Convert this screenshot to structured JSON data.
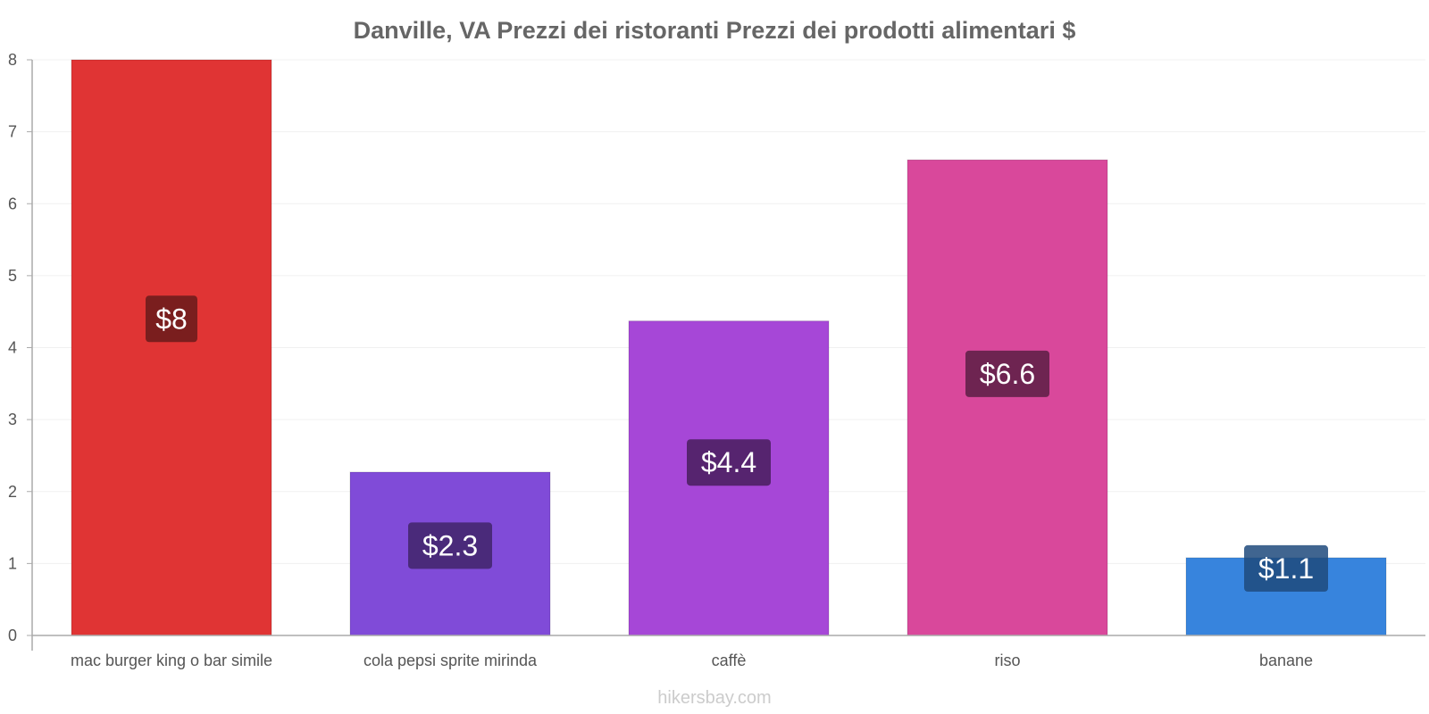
{
  "chart_data": {
    "type": "bar",
    "title": "Danville, VA Prezzi dei ristoranti Prezzi dei prodotti alimentari $",
    "categories": [
      "mac burger king o bar simile",
      "cola pepsi sprite mirinda",
      "caffè",
      "riso",
      "banane"
    ],
    "values": [
      8,
      2.27,
      4.37,
      6.61,
      1.08
    ],
    "value_labels": [
      "$8",
      "$2.3",
      "$4.4",
      "$6.6",
      "$1.1"
    ],
    "colors": [
      "#e03434",
      "#804bd8",
      "#a647d7",
      "#d9489b",
      "#3784dd"
    ],
    "label_bg_colors": [
      "#7a1e1e",
      "#4a2a7a",
      "#56246f",
      "#6e2451",
      "#1f4a7c"
    ],
    "yticks": [
      0,
      1,
      2,
      3,
      4,
      5,
      6,
      7,
      8
    ],
    "ylim": [
      0,
      8
    ],
    "xlabel": "",
    "ylabel": "",
    "grid": true
  },
  "watermark": "hikersbay.com"
}
